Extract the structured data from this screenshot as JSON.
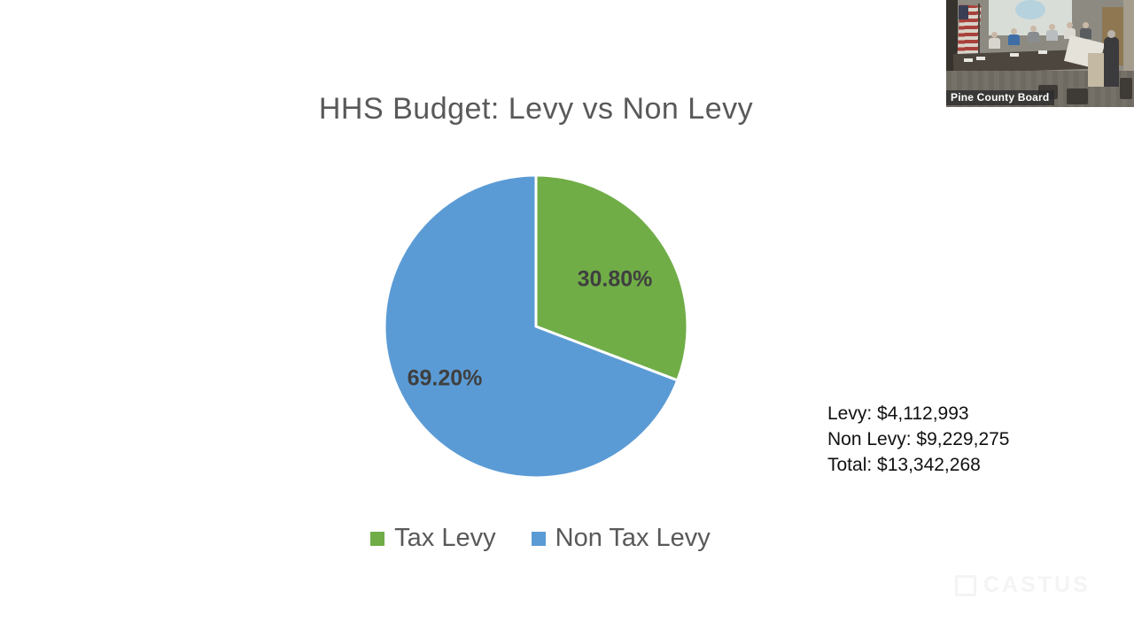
{
  "slide": {
    "title": "HHS Budget: Levy vs Non Levy",
    "summary": {
      "levy": "Levy: $4,112,993",
      "non_levy": "Non Levy: $9,229,275",
      "total": "Total: $13,342,268"
    }
  },
  "chart_data": {
    "type": "pie",
    "title": "HHS Budget: Levy vs Non Levy",
    "slices": [
      {
        "label": "Tax Levy",
        "value": 4112993,
        "percent": 30.8,
        "display_percent": "30.80%",
        "color": "#70AD47"
      },
      {
        "label": "Non Tax Levy",
        "value": 9229275,
        "percent": 69.2,
        "display_percent": "69.20%",
        "color": "#5B9BD5"
      }
    ],
    "total_value": 13342268,
    "legend_position": "bottom",
    "start_angle_deg": 0,
    "direction": "clockwise",
    "title_color": "#595959",
    "data_label_color": "#3F3F3F",
    "slice_border_color": "#FFFFFF"
  },
  "video_overlay": {
    "camera_label": "Pine County Board",
    "watermark": "CASTUS"
  }
}
